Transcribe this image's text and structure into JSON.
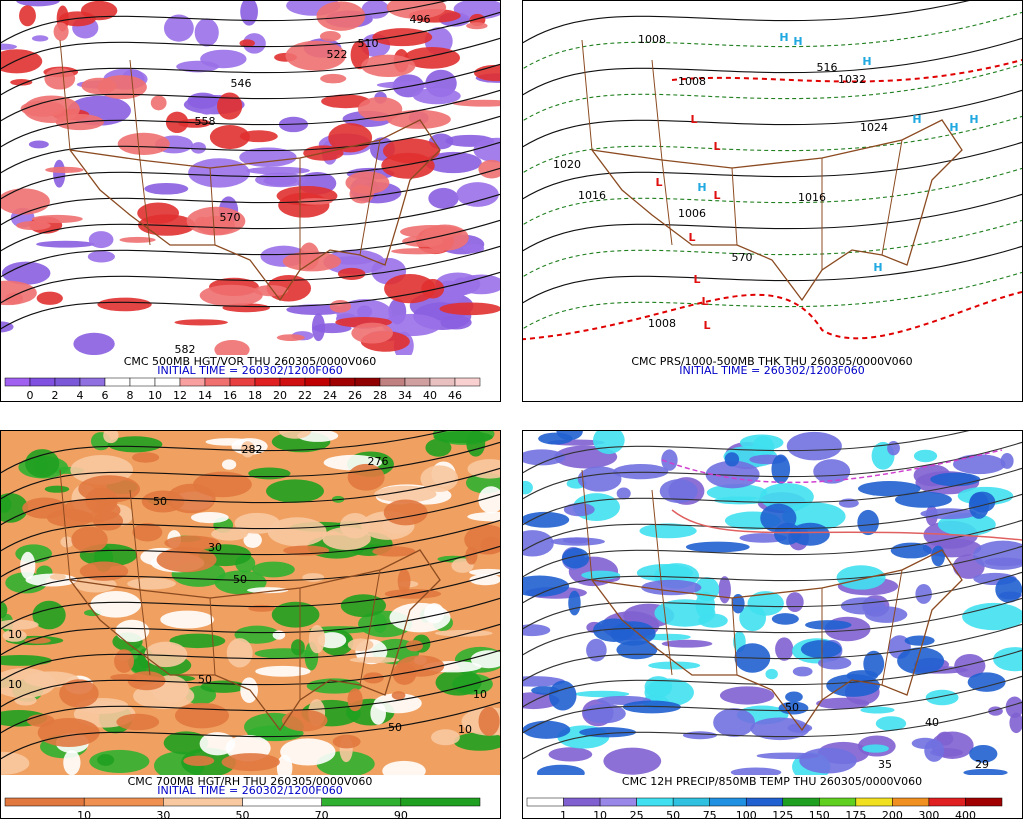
{
  "panels": [
    {
      "caption": "CMC 500MB HGT/VOR THU 260305/0000V060",
      "initial": "INITIAL TIME = 260302/1200F060",
      "background": "#ffffff",
      "blob_colors": [
        "#8a5ee0",
        "#9a70e8",
        "#e03030",
        "#f07070"
      ],
      "contour_labels": [
        "496",
        "510",
        "522",
        "546",
        "558",
        "570",
        "582"
      ],
      "highs": [],
      "lows": [],
      "colorbar": {
        "labels": [
          0,
          2,
          4,
          6,
          8,
          10,
          12,
          14,
          16,
          18,
          20,
          22,
          24,
          26,
          28,
          34,
          40,
          46
        ],
        "colors": [
          "#a060f0",
          "#8050e0",
          "#7a58d8",
          "#9070e0",
          "#ffffff",
          "#ffffff",
          "#ffffff",
          "#f8a0a0",
          "#f07070",
          "#e84040",
          "#e02020",
          "#d01010",
          "#c00000",
          "#a00000",
          "#900000",
          "#c08080",
          "#d0a0a0",
          "#e8c0c0",
          "#f8d0d0"
        ]
      }
    },
    {
      "caption": "CMC PRS/1000-500MB THK THU 260305/0000V060",
      "initial": "INITIAL TIME = 260302/1200F060",
      "background": "#ffffff",
      "blob_colors": [],
      "contour_labels": [
        "1008",
        "1008",
        "516",
        "1032",
        "1024",
        "1020",
        "1016",
        "1006",
        "1016",
        "570",
        "1008"
      ],
      "highs": [
        "H",
        "H",
        "H",
        "H",
        "H",
        "H",
        "H",
        "H"
      ],
      "lows": [
        "L",
        "L",
        "L",
        "L",
        "L",
        "L",
        "L",
        "L"
      ],
      "colorbar": null
    },
    {
      "caption": "CMC 700MB HGT/RH THU 260305/0000V060",
      "initial": "INITIAL TIME = 260302/1200F060",
      "background": "#f0a060",
      "blob_colors": [
        "#30b030",
        "#20a020",
        "#ffffff",
        "#f8c8a0",
        "#e07840"
      ],
      "contour_labels": [
        "282",
        "276",
        "50",
        "30",
        "50",
        "10",
        "10",
        "50",
        "10",
        "50",
        "10"
      ],
      "highs": [],
      "lows": [],
      "colorbar": {
        "labels": [
          10,
          30,
          50,
          70,
          90
        ],
        "colors": [
          "#e07840",
          "#f09050",
          "#f8c8a0",
          "#ffffff",
          "#30b030",
          "#20a020"
        ]
      }
    },
    {
      "caption": "CMC 12H PRECIP/850MB TEMP THU 260305/0000V060",
      "initial": null,
      "background": "#ffffff",
      "blob_colors": [
        "#8060d0",
        "#40e0f0",
        "#7070e0",
        "#2060d0"
      ],
      "contour_labels": [
        "35",
        "29",
        "40",
        "50"
      ],
      "highs": [],
      "lows": [],
      "colorbar": {
        "labels": [
          1,
          10,
          25,
          50,
          75,
          100,
          125,
          150,
          175,
          200,
          300,
          400
        ],
        "colors": [
          "#ffffff",
          "#8060d0",
          "#9a88e8",
          "#40e0f0",
          "#30c0e0",
          "#2090e0",
          "#2060d0",
          "#20a020",
          "#60d020",
          "#f0e020",
          "#f09020",
          "#e02020",
          "#a00000"
        ]
      }
    }
  ]
}
